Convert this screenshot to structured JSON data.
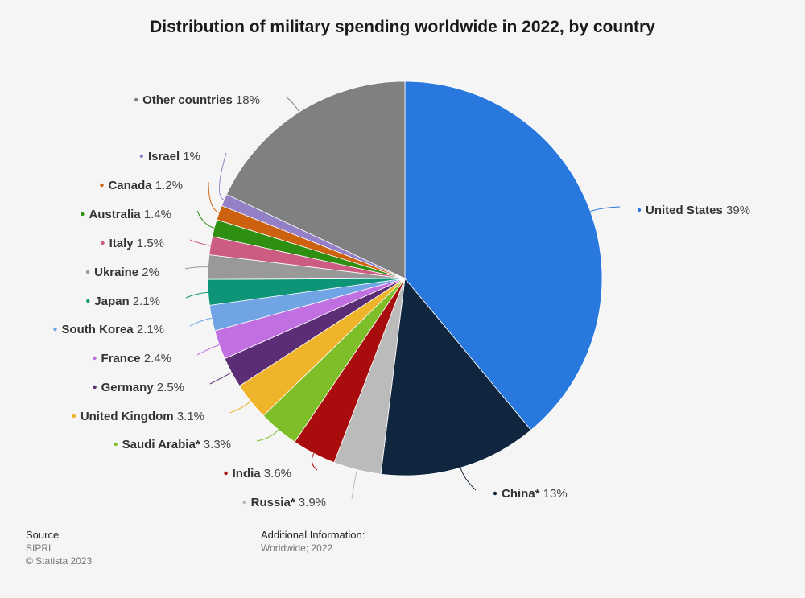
{
  "chart_data": {
    "type": "pie",
    "title": "Distribution of military spending worldwide in 2022, by country",
    "slices": [
      {
        "label": "United States",
        "value": 39,
        "value_label": "39%",
        "color": "#2878dd"
      },
      {
        "label": "China*",
        "value": 13,
        "value_label": "13%",
        "color": "#10263e"
      },
      {
        "label": "Russia*",
        "value": 3.9,
        "value_label": "3.9%",
        "color": "#bbbbbb"
      },
      {
        "label": "India",
        "value": 3.6,
        "value_label": "3.6%",
        "color": "#a80c0c"
      },
      {
        "label": "Saudi Arabia*",
        "value": 3.3,
        "value_label": "3.3%",
        "color": "#7ebf29"
      },
      {
        "label": "United Kingdom",
        "value": 3.1,
        "value_label": "3.1%",
        "color": "#efb42a"
      },
      {
        "label": "Germany",
        "value": 2.5,
        "value_label": "2.5%",
        "color": "#5b2d74"
      },
      {
        "label": "France",
        "value": 2.4,
        "value_label": "2.4%",
        "color": "#c070e0"
      },
      {
        "label": "South Korea",
        "value": 2.1,
        "value_label": "2.1%",
        "color": "#70a4e4"
      },
      {
        "label": "Japan",
        "value": 2.1,
        "value_label": "2.1%",
        "color": "#0e9577"
      },
      {
        "label": "Ukraine",
        "value": 2,
        "value_label": "2%",
        "color": "#999999"
      },
      {
        "label": "Italy",
        "value": 1.5,
        "value_label": "1.5%",
        "color": "#cc5c82"
      },
      {
        "label": "Australia",
        "value": 1.4,
        "value_label": "1.4%",
        "color": "#2f8f13"
      },
      {
        "label": "Canada",
        "value": 1.2,
        "value_label": "1.2%",
        "color": "#cc620f"
      },
      {
        "label": "Israel",
        "value": 1,
        "value_label": "1%",
        "color": "#9480c6"
      },
      {
        "label": "Other countries",
        "value": 18,
        "value_label": "18%",
        "color": "#808080"
      }
    ]
  },
  "footer": {
    "source_heading": "Source",
    "source_name": "SIPRI",
    "copyright": "© Statista 2023",
    "info_heading": "Additional Information:",
    "info_text": "Worldwide; 2022"
  }
}
